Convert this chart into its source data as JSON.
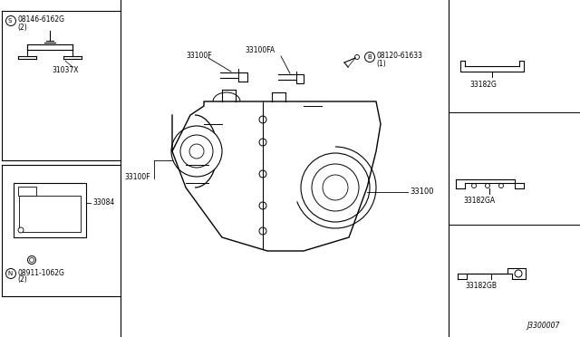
{
  "bg_color": "#ffffff",
  "border_color": "#000000",
  "diagram_id": "J3300007",
  "parts": {
    "main_unit": "33100",
    "top_left_part1_label": "08146-6162G",
    "top_left_part1_qty": "(2)",
    "top_left_part1_circle": "S",
    "top_left_part1_num": "31037X",
    "top_left_part2_num": "33084",
    "bottom_left_label": "08911-1062G",
    "bottom_left_qty": "(2)",
    "bottom_left_circle": "N",
    "top_center1": "33100FA",
    "top_center2": "33100F",
    "top_center3": "33100F",
    "top_right_label": "08120-61633",
    "top_right_qty": "(1)",
    "top_right_circle": "B",
    "right1": "33182G",
    "right2": "33182GA",
    "right3": "33182GB"
  }
}
